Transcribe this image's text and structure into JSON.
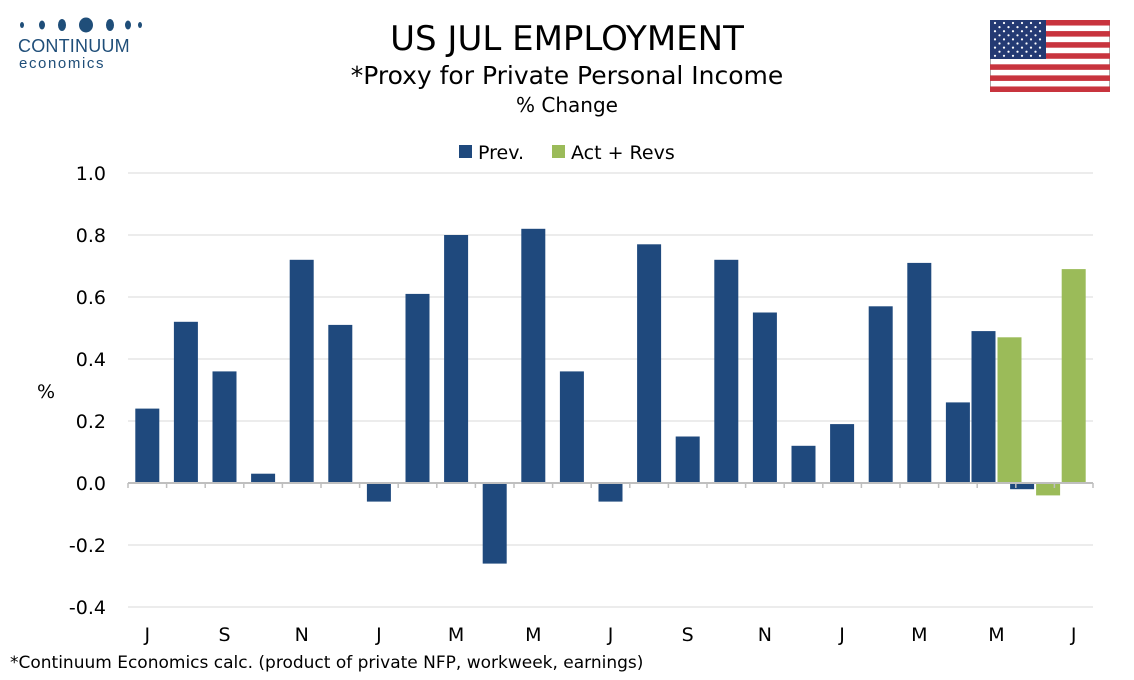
{
  "logo": {
    "name": "CONTINUUM",
    "sub": "economics",
    "color": "#1f4e79"
  },
  "chart_data": {
    "type": "bar",
    "title": "US JUL EMPLOYMENT",
    "subtitle": "*Proxy for Private Personal Income",
    "subtitle2": "% Change",
    "ylabel": "%",
    "xlabel": "",
    "ylim": [
      -0.4,
      1.0
    ],
    "yticks": [
      -0.4,
      -0.2,
      0.0,
      0.2,
      0.4,
      0.6,
      0.8,
      1.0
    ],
    "ytick_labels": [
      "-0.4",
      "-0.2",
      "0.0",
      "0.2",
      "0.4",
      "0.6",
      "0.8",
      "1.0"
    ],
    "grid": true,
    "legend_position": "top-center",
    "x_tick_labels": [
      "J",
      "S",
      "N",
      "J",
      "M",
      "M",
      "J",
      "S",
      "N",
      "J",
      "M",
      "M",
      "J"
    ],
    "series": [
      {
        "name": "Prev.",
        "color": "#1f497d",
        "values": [
          0.24,
          0.52,
          0.36,
          0.03,
          0.72,
          0.51,
          -0.06,
          0.61,
          0.8,
          -0.26,
          0.82,
          0.36,
          -0.06,
          0.77,
          0.15,
          0.72,
          0.55,
          0.12,
          0.19,
          0.57,
          0.71,
          0.26,
          0.49,
          -0.02,
          null
        ]
      },
      {
        "name": "Act + Revs",
        "color": "#9bbb59",
        "values": [
          null,
          null,
          null,
          null,
          null,
          null,
          null,
          null,
          null,
          null,
          null,
          null,
          null,
          null,
          null,
          null,
          null,
          null,
          null,
          null,
          null,
          null,
          0.47,
          -0.04,
          0.69
        ]
      }
    ]
  },
  "footnote": "*Continuum Economics calc. (product of private NFP, workweek, earnings)",
  "flag": {
    "icon": "us-flag-icon"
  }
}
